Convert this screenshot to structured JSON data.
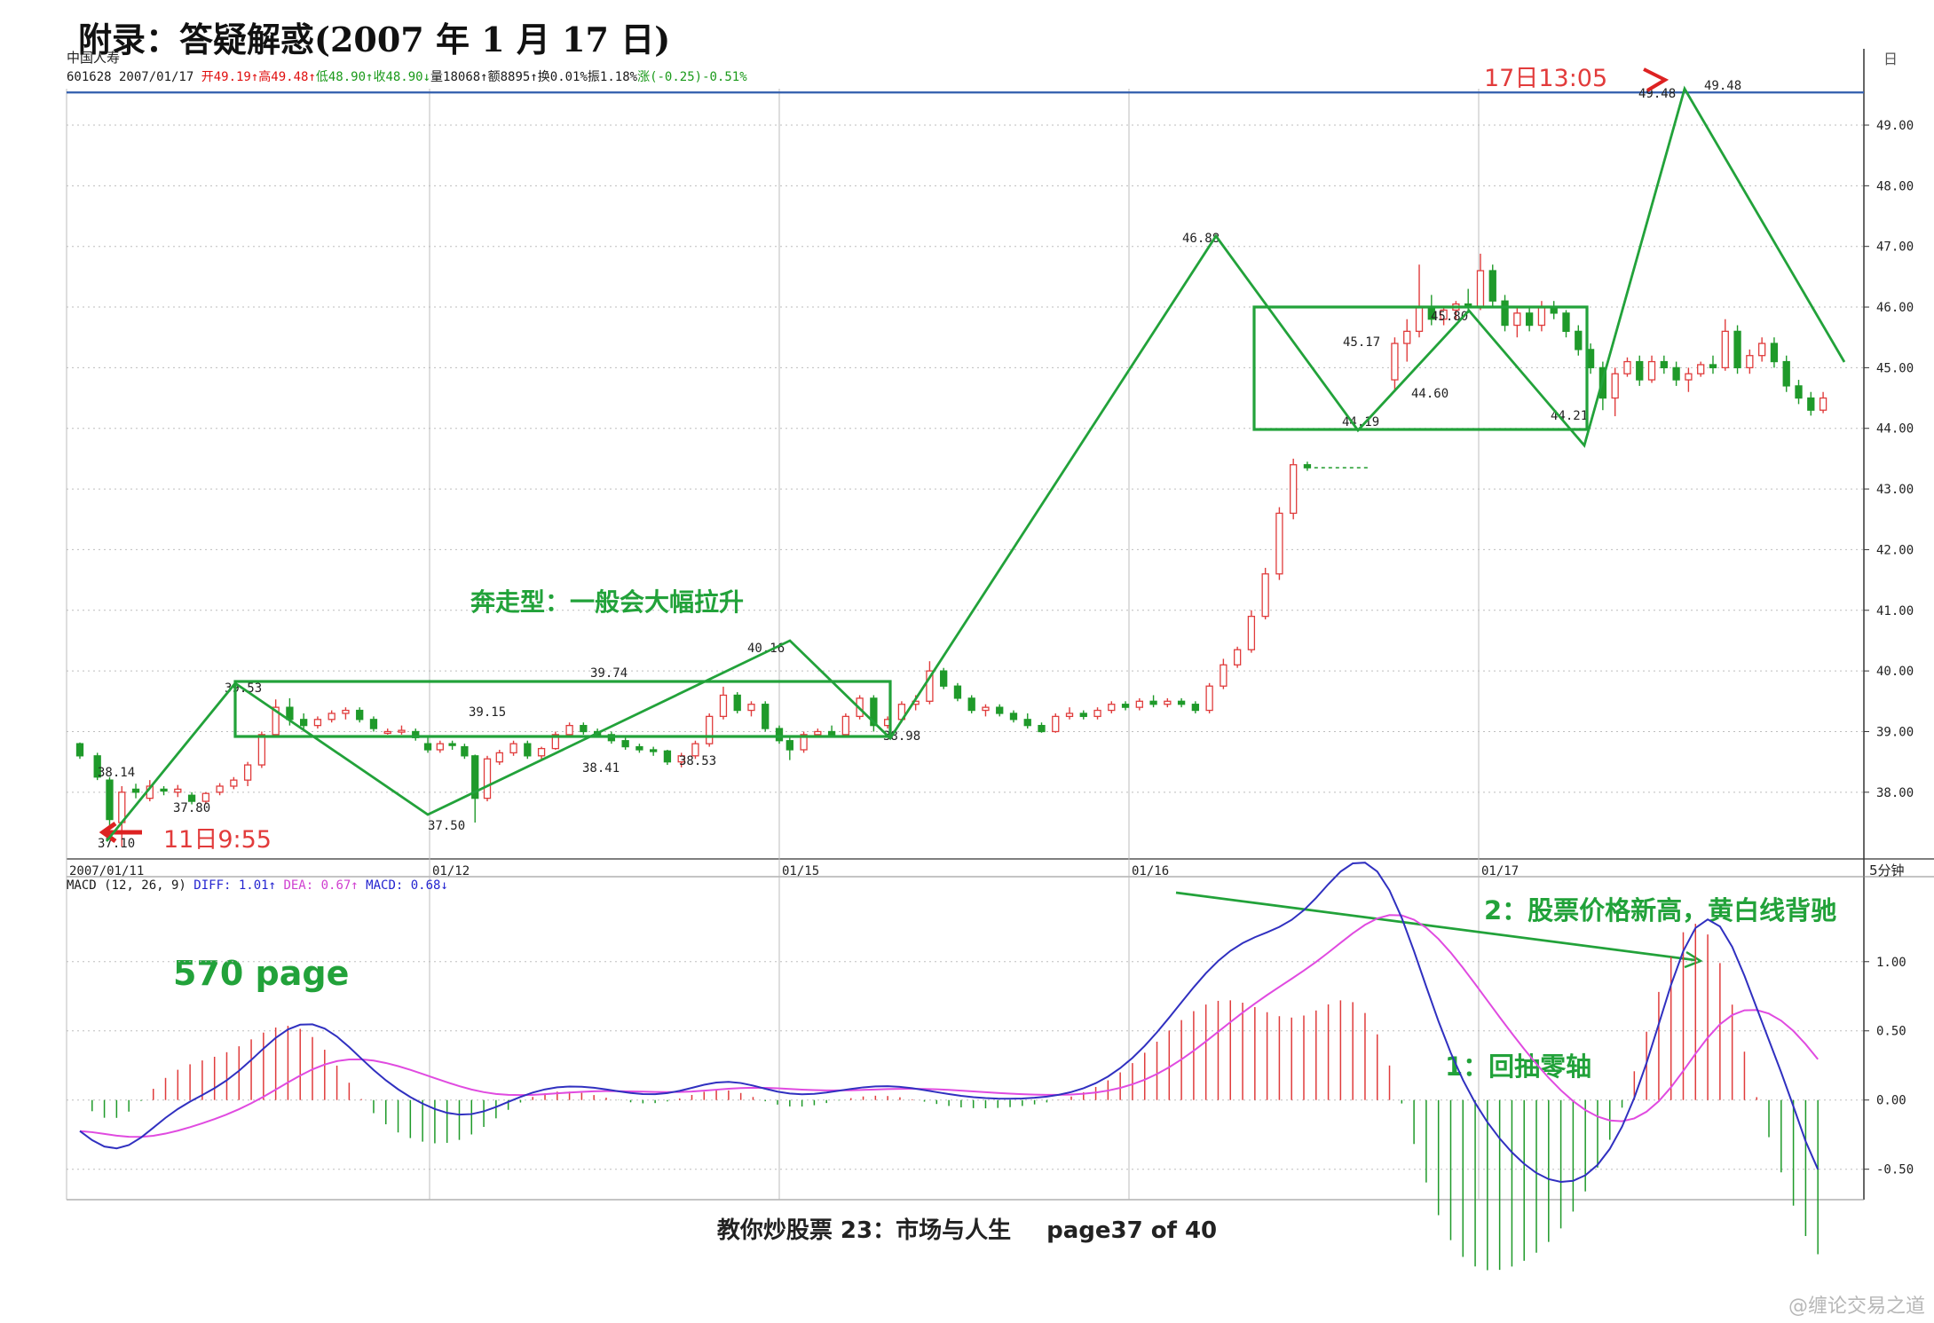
{
  "page": {
    "title": "附录：答疑解惑(2007 年 1 月 17 日)",
    "footer_title": "教你炒股票 23：市场与人生",
    "footer_page": "page37 of 40",
    "watermark": "@缠论交易之道"
  },
  "chart_data": [
    {
      "type": "candlestick",
      "stock_name": "中国人寿",
      "info_line": [
        {
          "text": "601628 2007/01/17 ",
          "color": "#1a1a1a"
        },
        {
          "text": "开49.19↑",
          "color": "#e01010"
        },
        {
          "text": "高49.48↑",
          "color": "#e01010"
        },
        {
          "text": "低48.90↑",
          "color": "#1a9a1a"
        },
        {
          "text": "收48.90↓",
          "color": "#1a9a1a"
        },
        {
          "text": "量18068↑",
          "color": "#1a1a1a"
        },
        {
          "text": "额8895↑",
          "color": "#1a1a1a"
        },
        {
          "text": "换0.01%",
          "color": "#1a1a1a"
        },
        {
          "text": "振1.18%",
          "color": "#1a1a1a"
        },
        {
          "text": "涨(-0.25)-0.51%",
          "color": "#1a9a1a"
        }
      ],
      "ylim": [
        36.9,
        49.6
      ],
      "yticks": [
        "49.00",
        "48.00",
        "47.00",
        "46.00",
        "45.00",
        "44.00",
        "43.00",
        "42.00",
        "41.00",
        "40.00",
        "39.00",
        "38.00"
      ],
      "ytick_values": [
        49,
        48,
        47,
        46,
        45,
        44,
        43,
        42,
        41,
        40,
        39,
        38
      ],
      "top_axis_label": "日",
      "xlim": [
        0,
        100
      ],
      "xticks": [
        {
          "label": "2007/01/11",
          "x": 0
        },
        {
          "label": "01/12",
          "x": 20
        },
        {
          "label": "01/15",
          "x": 40
        },
        {
          "label": "01/16",
          "x": 60
        },
        {
          "label": "01/17",
          "x": 80
        }
      ],
      "period_label": "5分钟",
      "price_line": {
        "stroke_value": 49.48
      },
      "candles": [
        [
          0.0,
          38.8,
          38.82,
          38.55,
          38.6
        ],
        [
          1.0,
          38.6,
          38.65,
          38.2,
          38.25
        ],
        [
          1.7,
          38.2,
          38.25,
          37.4,
          37.55
        ],
        [
          2.4,
          37.5,
          38.1,
          37.1,
          38.0
        ],
        [
          3.2,
          38.05,
          38.14,
          37.9,
          38.0
        ],
        [
          4.0,
          37.9,
          38.2,
          37.85,
          38.1
        ],
        [
          4.8,
          38.05,
          38.1,
          37.95,
          38.02
        ],
        [
          5.6,
          38.0,
          38.12,
          37.92,
          38.05
        ],
        [
          6.4,
          37.95,
          38.0,
          37.8,
          37.85
        ],
        [
          7.2,
          37.85,
          38.0,
          37.8,
          37.98
        ],
        [
          8.0,
          38.0,
          38.15,
          37.95,
          38.1
        ],
        [
          8.8,
          38.1,
          38.25,
          38.05,
          38.2
        ],
        [
          9.6,
          38.2,
          38.5,
          38.1,
          38.45
        ],
        [
          10.4,
          38.45,
          39.0,
          38.4,
          38.95
        ],
        [
          11.2,
          38.95,
          39.53,
          38.9,
          39.4
        ],
        [
          12.0,
          39.4,
          39.55,
          39.1,
          39.2
        ],
        [
          12.8,
          39.2,
          39.3,
          39.0,
          39.1
        ],
        [
          13.6,
          39.1,
          39.25,
          39.05,
          39.2
        ],
        [
          14.4,
          39.2,
          39.35,
          39.15,
          39.3
        ],
        [
          15.2,
          39.3,
          39.4,
          39.2,
          39.35
        ],
        [
          16.0,
          39.35,
          39.4,
          39.15,
          39.2
        ],
        [
          16.8,
          39.2,
          39.25,
          39.0,
          39.05
        ],
        [
          17.6,
          39.0,
          39.05,
          38.95,
          39.0
        ],
        [
          18.4,
          39.0,
          39.1,
          38.95,
          39.02
        ],
        [
          19.2,
          39.0,
          39.05,
          38.85,
          38.9
        ],
        [
          19.9,
          38.8,
          38.9,
          38.65,
          38.7
        ],
        [
          20.6,
          38.7,
          38.85,
          38.65,
          38.8
        ],
        [
          21.3,
          38.8,
          38.85,
          38.7,
          38.78
        ],
        [
          22.0,
          38.75,
          38.8,
          38.55,
          38.6
        ],
        [
          22.6,
          38.6,
          38.62,
          37.5,
          37.9
        ],
        [
          23.3,
          37.9,
          38.6,
          37.85,
          38.55
        ],
        [
          24.0,
          38.5,
          38.7,
          38.45,
          38.65
        ],
        [
          24.8,
          38.65,
          38.85,
          38.6,
          38.8
        ],
        [
          25.6,
          38.8,
          38.85,
          38.55,
          38.6
        ],
        [
          26.4,
          38.6,
          38.75,
          38.55,
          38.72
        ],
        [
          27.2,
          38.72,
          39.0,
          38.7,
          38.95
        ],
        [
          28.0,
          38.95,
          39.15,
          38.9,
          39.1
        ],
        [
          28.8,
          39.1,
          39.15,
          38.95,
          39.0
        ],
        [
          29.6,
          39.0,
          39.05,
          38.9,
          38.95
        ],
        [
          30.4,
          38.95,
          39.0,
          38.8,
          38.85
        ],
        [
          31.2,
          38.85,
          38.9,
          38.7,
          38.75
        ],
        [
          32.0,
          38.75,
          38.8,
          38.65,
          38.7
        ],
        [
          32.8,
          38.7,
          38.75,
          38.6,
          38.68
        ],
        [
          33.6,
          38.68,
          38.7,
          38.45,
          38.5
        ],
        [
          34.4,
          38.5,
          38.65,
          38.41,
          38.6
        ],
        [
          35.2,
          38.6,
          38.85,
          38.55,
          38.8
        ],
        [
          36.0,
          38.8,
          39.3,
          38.75,
          39.25
        ],
        [
          36.8,
          39.25,
          39.74,
          39.2,
          39.6
        ],
        [
          37.6,
          39.6,
          39.65,
          39.3,
          39.35
        ],
        [
          38.4,
          39.35,
          39.5,
          39.25,
          39.45
        ],
        [
          39.2,
          39.45,
          39.5,
          39.0,
          39.05
        ],
        [
          40.0,
          39.05,
          39.1,
          38.8,
          38.85
        ],
        [
          40.6,
          38.85,
          38.9,
          38.53,
          38.7
        ],
        [
          41.4,
          38.7,
          39.0,
          38.65,
          38.95
        ],
        [
          42.2,
          38.95,
          39.05,
          38.9,
          39.0
        ],
        [
          43.0,
          39.0,
          39.1,
          38.9,
          38.95
        ],
        [
          43.8,
          38.95,
          39.3,
          38.9,
          39.25
        ],
        [
          44.6,
          39.25,
          39.6,
          39.2,
          39.55
        ],
        [
          45.4,
          39.55,
          39.6,
          39.0,
          39.1
        ],
        [
          46.2,
          39.1,
          39.25,
          39.05,
          39.2
        ],
        [
          47.0,
          39.2,
          39.5,
          39.15,
          39.45
        ],
        [
          47.8,
          39.45,
          39.6,
          39.35,
          39.5
        ],
        [
          48.6,
          39.5,
          40.16,
          39.45,
          40.0
        ],
        [
          49.4,
          40.0,
          40.05,
          39.7,
          39.75
        ],
        [
          50.2,
          39.75,
          39.8,
          39.5,
          39.55
        ],
        [
          51.0,
          39.55,
          39.6,
          39.3,
          39.35
        ],
        [
          51.8,
          39.35,
          39.45,
          39.25,
          39.4
        ],
        [
          52.6,
          39.4,
          39.45,
          39.25,
          39.3
        ],
        [
          53.4,
          39.3,
          39.35,
          39.15,
          39.2
        ],
        [
          54.2,
          39.2,
          39.3,
          39.05,
          39.1
        ],
        [
          55.0,
          39.1,
          39.15,
          38.98,
          39.0
        ],
        [
          55.8,
          39.0,
          39.3,
          38.98,
          39.25
        ],
        [
          56.6,
          39.25,
          39.4,
          39.2,
          39.3
        ],
        [
          57.4,
          39.3,
          39.35,
          39.2,
          39.25
        ],
        [
          58.2,
          39.25,
          39.4,
          39.2,
          39.35
        ],
        [
          59.0,
          39.35,
          39.5,
          39.3,
          39.45
        ],
        [
          59.8,
          39.45,
          39.5,
          39.35,
          39.4
        ],
        [
          60.6,
          39.4,
          39.55,
          39.35,
          39.5
        ],
        [
          61.4,
          39.5,
          39.6,
          39.4,
          39.45
        ],
        [
          62.2,
          39.45,
          39.55,
          39.4,
          39.5
        ],
        [
          63.0,
          39.5,
          39.55,
          39.4,
          39.45
        ],
        [
          63.8,
          39.45,
          39.5,
          39.3,
          39.35
        ],
        [
          64.6,
          39.35,
          39.8,
          39.3,
          39.75
        ],
        [
          65.4,
          39.75,
          40.2,
          39.7,
          40.1
        ],
        [
          66.2,
          40.1,
          40.4,
          40.05,
          40.35
        ],
        [
          67.0,
          40.35,
          41.0,
          40.3,
          40.9
        ],
        [
          67.8,
          40.9,
          41.7,
          40.85,
          41.6
        ],
        [
          68.6,
          41.6,
          42.7,
          41.5,
          42.6
        ],
        [
          69.4,
          42.6,
          43.5,
          42.5,
          43.4
        ],
        [
          70.2,
          43.4,
          43.45,
          43.3,
          43.35
        ],
        [
          75.2,
          44.8,
          45.5,
          44.6,
          45.4
        ],
        [
          75.9,
          45.4,
          45.8,
          45.1,
          45.6
        ],
        [
          76.6,
          45.6,
          46.7,
          45.5,
          46.0
        ],
        [
          77.3,
          46.0,
          46.2,
          45.7,
          45.8
        ],
        [
          78.0,
          45.8,
          46.0,
          45.7,
          45.95
        ],
        [
          78.7,
          45.95,
          46.1,
          45.8,
          46.05
        ],
        [
          79.4,
          46.05,
          46.3,
          45.9,
          46.0
        ],
        [
          80.1,
          46.0,
          46.88,
          45.95,
          46.6
        ],
        [
          80.8,
          46.6,
          46.7,
          46.0,
          46.1
        ],
        [
          81.5,
          46.1,
          46.2,
          45.6,
          45.7
        ],
        [
          82.2,
          45.7,
          46.0,
          45.5,
          45.9
        ],
        [
          82.9,
          45.9,
          46.0,
          45.6,
          45.7
        ],
        [
          83.6,
          45.7,
          46.1,
          45.6,
          46.0
        ],
        [
          84.3,
          46.0,
          46.1,
          45.8,
          45.9
        ],
        [
          85.0,
          45.9,
          45.95,
          45.5,
          45.6
        ],
        [
          85.7,
          45.6,
          45.7,
          45.2,
          45.3
        ],
        [
          86.4,
          45.3,
          45.4,
          44.9,
          45.0
        ],
        [
          87.1,
          45.0,
          45.1,
          44.3,
          44.5
        ],
        [
          87.8,
          44.5,
          45.0,
          44.2,
          44.9
        ],
        [
          88.5,
          44.9,
          45.17,
          44.85,
          45.1
        ],
        [
          89.2,
          45.1,
          45.2,
          44.7,
          44.8
        ],
        [
          89.9,
          44.8,
          45.2,
          44.75,
          45.1
        ],
        [
          90.6,
          45.1,
          45.2,
          44.9,
          45.0
        ],
        [
          91.3,
          45.0,
          45.1,
          44.7,
          44.8
        ],
        [
          92.0,
          44.8,
          45.0,
          44.6,
          44.9
        ],
        [
          92.7,
          44.9,
          45.1,
          44.85,
          45.05
        ],
        [
          93.4,
          45.05,
          45.2,
          44.9,
          45.0
        ],
        [
          94.1,
          45.0,
          45.8,
          44.95,
          45.6
        ]
      ],
      "candles_late": [
        [
          94.8,
          45.6,
          45.7,
          44.9,
          45.0
        ],
        [
          95.5,
          45.0,
          45.3,
          44.9,
          45.2
        ],
        [
          96.2,
          45.2,
          45.5,
          45.1,
          45.4
        ],
        [
          96.9,
          45.4,
          45.5,
          45.0,
          45.1
        ],
        [
          97.6,
          45.1,
          45.2,
          44.6,
          44.7
        ],
        [
          98.3,
          44.7,
          44.8,
          44.4,
          44.5
        ],
        [
          99.0,
          44.5,
          44.6,
          44.21,
          44.3
        ],
        [
          99.7,
          44.3,
          44.6,
          44.25,
          44.5
        ]
      ],
      "annotations_price": [
        {
          "text": "39.53",
          "x": 11.2,
          "y": 39.53
        },
        {
          "text": "38.14",
          "x": 3.2,
          "y": 38.14
        },
        {
          "text": "37.80",
          "x": 6.7,
          "y": 37.8
        },
        {
          "text": "37.10",
          "x": 2.4,
          "y": 37.1
        },
        {
          "text": "37.50",
          "x": 22.6,
          "y": 37.5
        },
        {
          "text": "39.15",
          "x": 28.0,
          "y": 39.15
        },
        {
          "text": "38.41",
          "x": 34.4,
          "y": 38.41
        },
        {
          "text": "39.74",
          "x": 36.8,
          "y": 39.74
        },
        {
          "text": "38.53",
          "x": 40.6,
          "y": 38.53
        },
        {
          "text": "40.16",
          "x": 48.6,
          "y": 40.16
        },
        {
          "text": "38.98",
          "x": 55.0,
          "y": 38.98
        },
        {
          "text": "46.88",
          "x": 80.1,
          "y": 46.88
        },
        {
          "text": "45.17",
          "x": 88.5,
          "y": 45.17
        },
        {
          "text": "44.60",
          "x": 92.0,
          "y": 44.6
        },
        {
          "text": "45.80",
          "x": 94.1,
          "y": 45.8
        },
        {
          "text": "44.19",
          "x": 87.8,
          "y": 44.19
        },
        {
          "text": "44.21",
          "x": 99.0,
          "y": 44.21
        },
        {
          "text": "49.48",
          "x": 0,
          "y": 0
        },
        {
          "text": "49.48",
          "x": 0,
          "y": 0
        }
      ],
      "time_labels": [
        {
          "text": "11日9:55",
          "color": "#e23b3b"
        },
        {
          "text": "17日13:05",
          "color": "#e23b3b"
        }
      ],
      "overlay_labels": {
        "breakaway": "奔走型：一般会大幅拉升",
        "page_note": "570 page",
        "macd_note_1": "1：回抽零轴",
        "macd_note_2": "2：股票价格新高，黄白线背驰"
      },
      "macd": {
        "header": [
          {
            "text": "MACD (12, 26, 9) ",
            "color": "#1a1a1a"
          },
          {
            "text": "DIFF: 1.01↑",
            "color": "#2424d0"
          },
          {
            "text": "DEA: 0.67↑",
            "color": "#d040d0"
          },
          {
            "text": "MACD: 0.68↓",
            "color": "#2424d0"
          }
        ],
        "ylim": [
          -0.72,
          1.55
        ],
        "yticks": [
          "1.00",
          "0.50",
          "0.00",
          "-0.50"
        ],
        "ytick_values": [
          1.0,
          0.5,
          0.0,
          -0.5
        ]
      }
    }
  ]
}
